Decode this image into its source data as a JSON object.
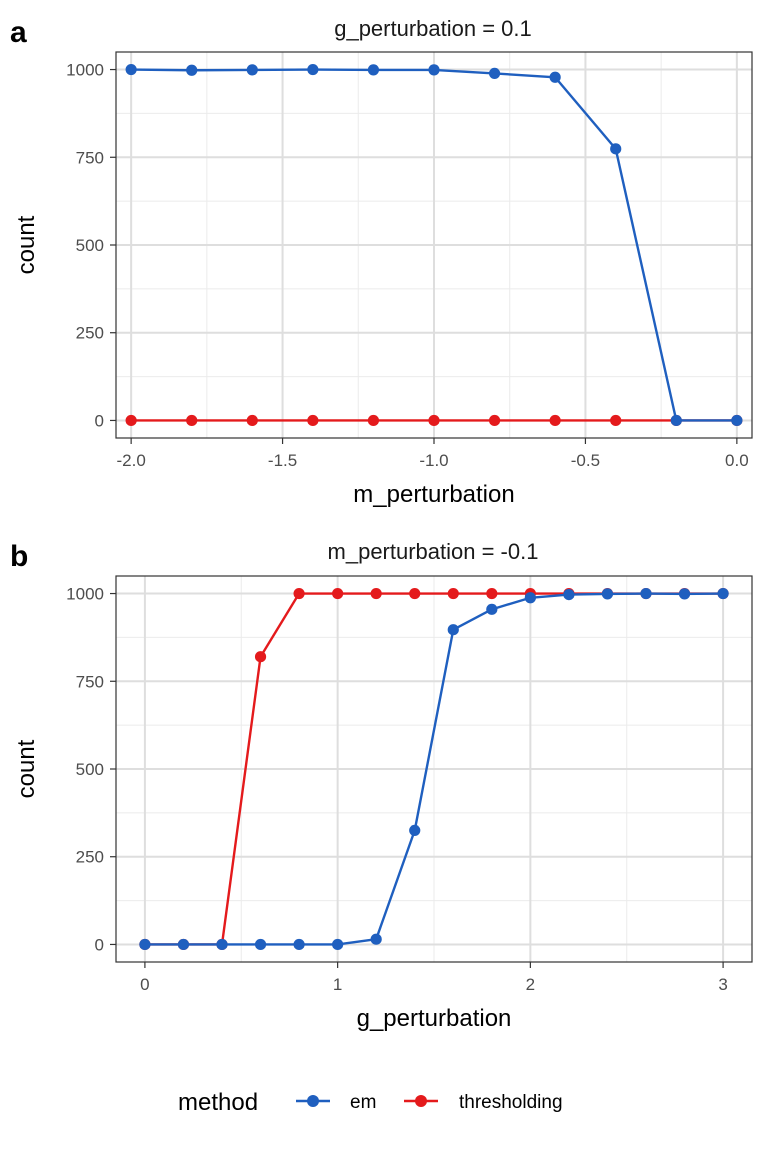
{
  "chart_data": [
    {
      "tag": "a",
      "type": "line",
      "title": "g_perturbation = 0.1",
      "xlabel": "m_perturbation",
      "ylabel": "count",
      "xlim": [
        -2.05,
        0.05
      ],
      "ylim": [
        -50,
        1050
      ],
      "xticks": [
        -2.0,
        -1.5,
        -1.0,
        -0.5,
        0.0
      ],
      "xtick_labels": [
        "-2.0",
        "-1.5",
        "-1.0",
        "-0.5",
        "0.0"
      ],
      "yticks": [
        0,
        250,
        500,
        750,
        1000
      ],
      "ytick_labels": [
        "0",
        "250",
        "500",
        "750",
        "1000"
      ],
      "xminor": [
        -1.75,
        -1.25,
        -0.75,
        -0.25
      ],
      "yminor": [
        125,
        375,
        625,
        875
      ],
      "grid": true,
      "x": [
        -2.0,
        -1.8,
        -1.6,
        -1.4,
        -1.2,
        -1.0,
        -0.8,
        -0.6,
        -0.4,
        -0.2,
        0.0
      ],
      "series": [
        {
          "name": "thresholding",
          "color": "#E41A1C",
          "values": [
            0,
            0,
            0,
            0,
            0,
            0,
            0,
            0,
            0,
            0,
            0
          ]
        },
        {
          "name": "em",
          "color": "#1F5FBF",
          "values": [
            1000,
            998,
            999,
            1000,
            999,
            999,
            989,
            978,
            774,
            0,
            0
          ]
        }
      ]
    },
    {
      "tag": "b",
      "type": "line",
      "title": "m_perturbation = -0.1",
      "xlabel": "g_perturbation",
      "ylabel": "count",
      "xlim": [
        -0.15,
        3.15
      ],
      "ylim": [
        -50,
        1050
      ],
      "xticks": [
        0,
        1,
        2,
        3
      ],
      "xtick_labels": [
        "0",
        "1",
        "2",
        "3"
      ],
      "yticks": [
        0,
        250,
        500,
        750,
        1000
      ],
      "ytick_labels": [
        "0",
        "250",
        "500",
        "750",
        "1000"
      ],
      "xminor": [
        0.5,
        1.5,
        2.5
      ],
      "yminor": [
        125,
        375,
        625,
        875
      ],
      "grid": true,
      "x": [
        0,
        0.2,
        0.4,
        0.6,
        0.8,
        1.0,
        1.2,
        1.4,
        1.6,
        1.8,
        2.0,
        2.2,
        2.4,
        2.6,
        2.8,
        3.0
      ],
      "series": [
        {
          "name": "thresholding",
          "color": "#E41A1C",
          "values": [
            0,
            0,
            0,
            820,
            1000,
            1000,
            1000,
            1000,
            1000,
            1000,
            1000,
            1000,
            1000,
            1000,
            1000,
            1000
          ]
        },
        {
          "name": "em",
          "color": "#1F5FBF",
          "values": [
            0,
            0,
            0,
            0,
            0,
            0,
            15,
            325,
            897,
            955,
            988,
            997,
            999,
            1000,
            999,
            1000
          ]
        }
      ]
    }
  ],
  "legend": {
    "title": "method",
    "position": "bottom",
    "items": [
      {
        "label": "em",
        "color": "#1F5FBF"
      },
      {
        "label": "thresholding",
        "color": "#E41A1C"
      }
    ]
  }
}
